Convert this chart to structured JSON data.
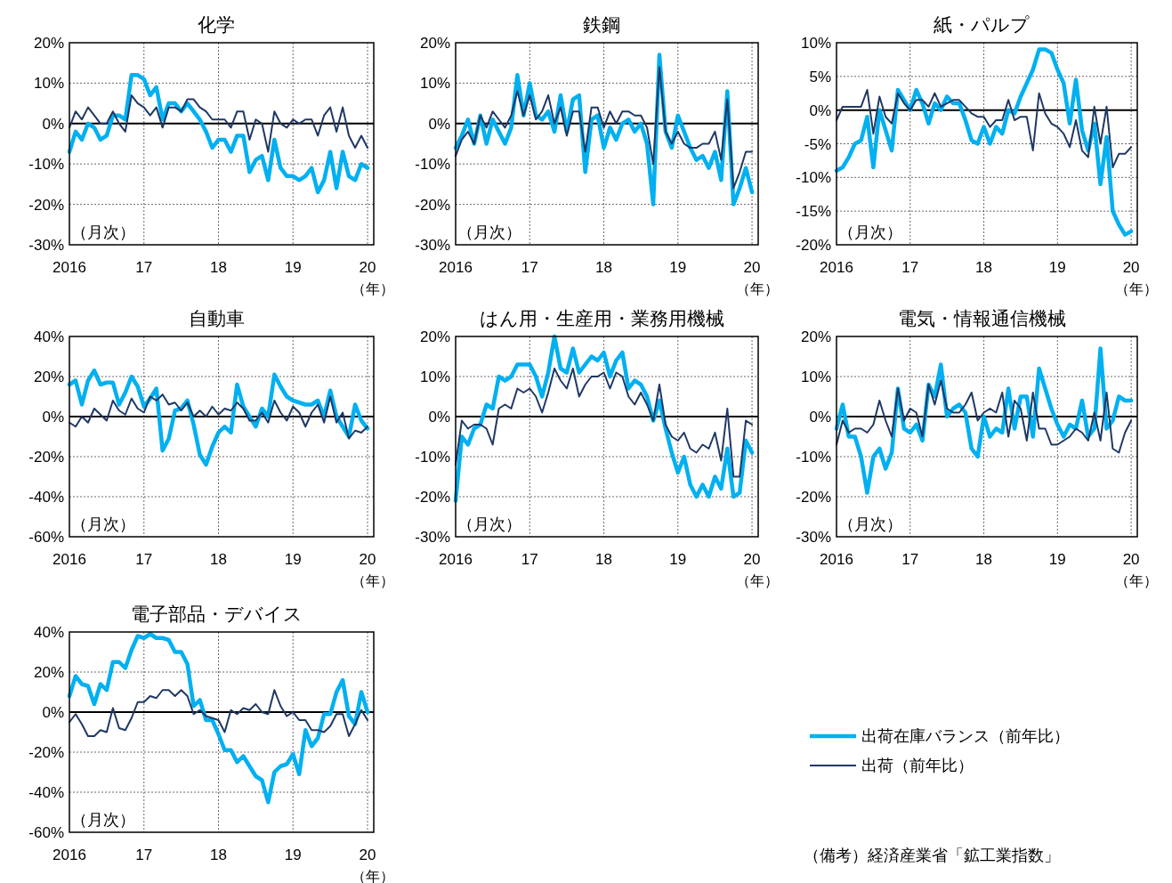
{
  "chart_data": [
    {
      "type": "line",
      "title": "化学",
      "xlabel": "（年）",
      "annotations": [
        "（月次）"
      ],
      "grid": true,
      "x": [
        "2016-01",
        "2016-02",
        "2016-03",
        "2016-04",
        "2016-05",
        "2016-06",
        "2016-07",
        "2016-08",
        "2016-09",
        "2016-10",
        "2016-11",
        "2016-12",
        "2017-01",
        "2017-02",
        "2017-03",
        "2017-04",
        "2017-05",
        "2017-06",
        "2017-07",
        "2017-08",
        "2017-09",
        "2017-10",
        "2017-11",
        "2017-12",
        "2018-01",
        "2018-02",
        "2018-03",
        "2018-04",
        "2018-05",
        "2018-06",
        "2018-07",
        "2018-08",
        "2018-09",
        "2018-10",
        "2018-11",
        "2018-12",
        "2019-01",
        "2019-02",
        "2019-03",
        "2019-04",
        "2019-05",
        "2019-06",
        "2019-07",
        "2019-08",
        "2019-09",
        "2019-10",
        "2019-11",
        "2019-12",
        "2020-01"
      ],
      "xlim": [
        "2016-01",
        "2020-02"
      ],
      "xticks": [
        {
          "value": "2016-01",
          "label": "2016"
        },
        {
          "value": "2017-01",
          "label": "17"
        },
        {
          "value": "2018-01",
          "label": "18"
        },
        {
          "value": "2019-01",
          "label": "19"
        },
        {
          "value": "2020-01",
          "label": "20"
        }
      ],
      "ylim": [
        -30,
        20
      ],
      "yticks": [
        {
          "value": -30,
          "label": "-30%"
        },
        {
          "value": -20,
          "label": "-20%"
        },
        {
          "value": -10,
          "label": "-10%"
        },
        {
          "value": 0,
          "label": "0%"
        },
        {
          "value": 10,
          "label": "10%"
        },
        {
          "value": 20,
          "label": "20%"
        }
      ],
      "ref_lines": [
        {
          "axis": "y",
          "value": 0,
          "color": "#000000"
        }
      ],
      "series": [
        {
          "color": "#00b0f0",
          "values": [
            -7,
            -2,
            -4,
            0,
            -1,
            -4,
            -3,
            2,
            2,
            1,
            12,
            12,
            11,
            7,
            9,
            1,
            5,
            5,
            3,
            5,
            3,
            1,
            -2,
            -6,
            -4,
            -4,
            -7,
            -3,
            -3,
            -12,
            -9,
            -8,
            -14,
            -4,
            -11,
            -13,
            -13,
            -14,
            -13,
            -11,
            -17,
            -14,
            -7,
            -16,
            -7,
            -13,
            -14,
            -10,
            -11
          ]
        },
        {
          "color": "#1f3864",
          "values": [
            -1,
            3,
            1,
            4,
            2,
            0,
            0,
            3,
            0,
            -2,
            7,
            5,
            4,
            2,
            4,
            -1,
            4,
            4,
            3,
            6,
            6,
            4,
            3,
            1,
            1,
            1,
            -1,
            3,
            3,
            -4,
            1,
            0,
            -7,
            3,
            0,
            -1,
            1,
            0,
            1,
            1,
            -3,
            2,
            4,
            -2,
            4,
            -3,
            -6,
            -3,
            -6
          ]
        }
      ]
    },
    {
      "type": "line",
      "title": "鉄鋼",
      "xlabel": "（年）",
      "annotations": [
        "（月次）"
      ],
      "grid": true,
      "x": [
        "2016-01",
        "2016-02",
        "2016-03",
        "2016-04",
        "2016-05",
        "2016-06",
        "2016-07",
        "2016-08",
        "2016-09",
        "2016-10",
        "2016-11",
        "2016-12",
        "2017-01",
        "2017-02",
        "2017-03",
        "2017-04",
        "2017-05",
        "2017-06",
        "2017-07",
        "2017-08",
        "2017-09",
        "2017-10",
        "2017-11",
        "2017-12",
        "2018-01",
        "2018-02",
        "2018-03",
        "2018-04",
        "2018-05",
        "2018-06",
        "2018-07",
        "2018-08",
        "2018-09",
        "2018-10",
        "2018-11",
        "2018-12",
        "2019-01",
        "2019-02",
        "2019-03",
        "2019-04",
        "2019-05",
        "2019-06",
        "2019-07",
        "2019-08",
        "2019-09",
        "2019-10",
        "2019-11",
        "2019-12",
        "2020-01"
      ],
      "xlim": [
        "2016-01",
        "2020-02"
      ],
      "xticks": [
        {
          "value": "2016-01",
          "label": "2016"
        },
        {
          "value": "2017-01",
          "label": "17"
        },
        {
          "value": "2018-01",
          "label": "18"
        },
        {
          "value": "2019-01",
          "label": "19"
        },
        {
          "value": "2020-01",
          "label": "20"
        }
      ],
      "ylim": [
        -30,
        20
      ],
      "yticks": [
        {
          "value": -30,
          "label": "-30%"
        },
        {
          "value": -20,
          "label": "-20%"
        },
        {
          "value": -10,
          "label": "-10%"
        },
        {
          "value": 0,
          "label": "0%"
        },
        {
          "value": 10,
          "label": "10%"
        },
        {
          "value": 20,
          "label": "20%"
        }
      ],
      "ref_lines": [
        {
          "axis": "y",
          "value": 0,
          "color": "#000000"
        }
      ],
      "series": [
        {
          "color": "#00b0f0",
          "values": [
            -6,
            -3,
            1,
            -5,
            2,
            -5,
            1,
            -2,
            -5,
            -1,
            12,
            2,
            10,
            2,
            1,
            3,
            -2,
            7,
            -2,
            6,
            7,
            -12,
            1,
            2,
            -6,
            -1,
            -4,
            0,
            1,
            -2,
            0,
            -5,
            -20,
            17,
            -2,
            -6,
            2,
            -2,
            -6,
            -9,
            -8,
            -11,
            -7,
            -14,
            8,
            -20,
            -16,
            -11,
            -17
          ]
        },
        {
          "color": "#1f3864",
          "values": [
            -8,
            -4,
            -2,
            -5,
            2,
            -1,
            3,
            1,
            -1,
            2,
            8,
            2,
            7,
            1,
            3,
            7,
            0,
            4,
            -3,
            3,
            3,
            -7,
            4,
            4,
            -1,
            3,
            0,
            3,
            3,
            2,
            2,
            -1,
            -10,
            14,
            -2,
            -5,
            -2,
            -5,
            -6,
            -6,
            -5,
            -5,
            -2,
            -9,
            6,
            -16,
            -12,
            -7,
            -7
          ]
        }
      ]
    },
    {
      "type": "line",
      "title": "紙・パルプ",
      "xlabel": "（年）",
      "annotations": [
        "（月次）"
      ],
      "grid": true,
      "x": [
        "2016-01",
        "2016-02",
        "2016-03",
        "2016-04",
        "2016-05",
        "2016-06",
        "2016-07",
        "2016-08",
        "2016-09",
        "2016-10",
        "2016-11",
        "2016-12",
        "2017-01",
        "2017-02",
        "2017-03",
        "2017-04",
        "2017-05",
        "2017-06",
        "2017-07",
        "2017-08",
        "2017-09",
        "2017-10",
        "2017-11",
        "2017-12",
        "2018-01",
        "2018-02",
        "2018-03",
        "2018-04",
        "2018-05",
        "2018-06",
        "2018-07",
        "2018-08",
        "2018-09",
        "2018-10",
        "2018-11",
        "2018-12",
        "2019-01",
        "2019-02",
        "2019-03",
        "2019-04",
        "2019-05",
        "2019-06",
        "2019-07",
        "2019-08",
        "2019-09",
        "2019-10",
        "2019-11",
        "2019-12",
        "2020-01"
      ],
      "xlim": [
        "2016-01",
        "2020-02"
      ],
      "xticks": [
        {
          "value": "2016-01",
          "label": "2016"
        },
        {
          "value": "2017-01",
          "label": "17"
        },
        {
          "value": "2018-01",
          "label": "18"
        },
        {
          "value": "2019-01",
          "label": "19"
        },
        {
          "value": "2020-01",
          "label": "20"
        }
      ],
      "ylim": [
        -20,
        10
      ],
      "yticks": [
        {
          "value": -20,
          "label": "-20%"
        },
        {
          "value": -15,
          "label": "-15%"
        },
        {
          "value": -10,
          "label": "-10%"
        },
        {
          "value": -5,
          "label": "-5%"
        },
        {
          "value": 0,
          "label": "0%"
        },
        {
          "value": 5,
          "label": "5%"
        },
        {
          "value": 10,
          "label": "10%"
        }
      ],
      "ref_lines": [
        {
          "axis": "y",
          "value": 0,
          "color": "#000000"
        }
      ],
      "series": [
        {
          "color": "#00b0f0",
          "values": [
            -9,
            -8.5,
            -7,
            -5,
            -4.5,
            -1,
            -8.5,
            0,
            -3,
            -6,
            3,
            1.5,
            0,
            3,
            1,
            -2,
            1,
            0,
            2,
            1,
            1,
            -1.5,
            -4.5,
            -5,
            -2.5,
            -5,
            -2.5,
            -3.5,
            0,
            -0.5,
            2,
            4,
            6,
            9,
            9,
            8.5,
            6,
            4,
            -2,
            4.5,
            -3,
            -6,
            -2,
            -11,
            -4,
            -15,
            -17,
            -18.5,
            -18
          ]
        },
        {
          "color": "#1f3864",
          "values": [
            -1.5,
            0.5,
            0.5,
            0.5,
            0.5,
            3,
            -3.5,
            2,
            -1,
            -2,
            2.5,
            1,
            0,
            1.5,
            1.5,
            0.5,
            2.5,
            0.5,
            1,
            1.5,
            1.5,
            0.5,
            -0.5,
            -1,
            -1,
            -2.5,
            -1.5,
            -1.5,
            1.5,
            -1.5,
            -1,
            -1,
            -6,
            2.5,
            -0.5,
            -2,
            -2.5,
            -3.5,
            -5.5,
            -1.5,
            -6,
            -7,
            0.5,
            -5,
            0.5,
            -8.5,
            -6.5,
            -6.5,
            -5.5
          ]
        }
      ]
    },
    {
      "type": "line",
      "title": "自動車",
      "xlabel": "（年）",
      "annotations": [
        "（月次）"
      ],
      "grid": true,
      "x": [
        "2016-01",
        "2016-02",
        "2016-03",
        "2016-04",
        "2016-05",
        "2016-06",
        "2016-07",
        "2016-08",
        "2016-09",
        "2016-10",
        "2016-11",
        "2016-12",
        "2017-01",
        "2017-02",
        "2017-03",
        "2017-04",
        "2017-05",
        "2017-06",
        "2017-07",
        "2017-08",
        "2017-09",
        "2017-10",
        "2017-11",
        "2017-12",
        "2018-01",
        "2018-02",
        "2018-03",
        "2018-04",
        "2018-05",
        "2018-06",
        "2018-07",
        "2018-08",
        "2018-09",
        "2018-10",
        "2018-11",
        "2018-12",
        "2019-01",
        "2019-02",
        "2019-03",
        "2019-04",
        "2019-05",
        "2019-06",
        "2019-07",
        "2019-08",
        "2019-09",
        "2019-10",
        "2019-11",
        "2019-12",
        "2020-01"
      ],
      "xlim": [
        "2016-01",
        "2020-02"
      ],
      "xticks": [
        {
          "value": "2016-01",
          "label": "2016"
        },
        {
          "value": "2017-01",
          "label": "17"
        },
        {
          "value": "2018-01",
          "label": "18"
        },
        {
          "value": "2019-01",
          "label": "19"
        },
        {
          "value": "2020-01",
          "label": "20"
        }
      ],
      "ylim": [
        -60,
        40
      ],
      "yticks": [
        {
          "value": -60,
          "label": "-60%"
        },
        {
          "value": -40,
          "label": "-40%"
        },
        {
          "value": -20,
          "label": "-20%"
        },
        {
          "value": 0,
          "label": "0%"
        },
        {
          "value": 20,
          "label": "20%"
        },
        {
          "value": 40,
          "label": "40%"
        }
      ],
      "ref_lines": [
        {
          "axis": "y",
          "value": 0,
          "color": "#000000"
        }
      ],
      "series": [
        {
          "color": "#00b0f0",
          "values": [
            16,
            18,
            6,
            18,
            23,
            16,
            17,
            17,
            6,
            12,
            20,
            15,
            5,
            9,
            14,
            -17,
            -11,
            3,
            4,
            8,
            -4,
            -19,
            -24,
            -15,
            -8,
            -5,
            -8,
            16,
            5,
            0,
            -5,
            4,
            0,
            21,
            15,
            10,
            8,
            7,
            6,
            6,
            8,
            0,
            13,
            0,
            -5,
            -10,
            6,
            -2,
            -6
          ]
        },
        {
          "color": "#1f3864",
          "values": [
            -3,
            -5,
            0,
            -3,
            4,
            1,
            -2,
            8,
            3,
            1,
            9,
            4,
            2,
            10,
            8,
            11,
            6,
            7,
            3,
            7,
            0,
            3,
            0,
            5,
            1,
            4,
            3,
            7,
            4,
            -2,
            -2,
            2,
            -3,
            8,
            2,
            -2,
            5,
            2,
            -5,
            2,
            6,
            -3,
            10,
            -3,
            2,
            -11,
            -7,
            -8,
            -5
          ]
        }
      ]
    },
    {
      "type": "line",
      "title": "はん用・生産用・業務用機械",
      "xlabel": "（年）",
      "annotations": [
        "（月次）"
      ],
      "grid": true,
      "x": [
        "2016-01",
        "2016-02",
        "2016-03",
        "2016-04",
        "2016-05",
        "2016-06",
        "2016-07",
        "2016-08",
        "2016-09",
        "2016-10",
        "2016-11",
        "2016-12",
        "2017-01",
        "2017-02",
        "2017-03",
        "2017-04",
        "2017-05",
        "2017-06",
        "2017-07",
        "2017-08",
        "2017-09",
        "2017-10",
        "2017-11",
        "2017-12",
        "2018-01",
        "2018-02",
        "2018-03",
        "2018-04",
        "2018-05",
        "2018-06",
        "2018-07",
        "2018-08",
        "2018-09",
        "2018-10",
        "2018-11",
        "2018-12",
        "2019-01",
        "2019-02",
        "2019-03",
        "2019-04",
        "2019-05",
        "2019-06",
        "2019-07",
        "2019-08",
        "2019-09",
        "2019-10",
        "2019-11",
        "2019-12",
        "2020-01"
      ],
      "xlim": [
        "2016-01",
        "2020-02"
      ],
      "xticks": [
        {
          "value": "2016-01",
          "label": "2016"
        },
        {
          "value": "2017-01",
          "label": "17"
        },
        {
          "value": "2018-01",
          "label": "18"
        },
        {
          "value": "2019-01",
          "label": "19"
        },
        {
          "value": "2020-01",
          "label": "20"
        }
      ],
      "ylim": [
        -30,
        20
      ],
      "yticks": [
        {
          "value": -30,
          "label": "-30%"
        },
        {
          "value": -20,
          "label": "-20%"
        },
        {
          "value": -10,
          "label": "-10%"
        },
        {
          "value": 0,
          "label": "0%"
        },
        {
          "value": 10,
          "label": "10%"
        },
        {
          "value": 20,
          "label": "20%"
        }
      ],
      "ref_lines": [
        {
          "axis": "y",
          "value": 0,
          "color": "#000000"
        }
      ],
      "series": [
        {
          "color": "#00b0f0",
          "values": [
            -21,
            -5,
            -7,
            -3,
            -2,
            3,
            2,
            10,
            9,
            10,
            13,
            13,
            13,
            10,
            5,
            11,
            20,
            12,
            11,
            17,
            11,
            13,
            15,
            14,
            16,
            10,
            14,
            16,
            7,
            9,
            8,
            5,
            -1,
            4,
            -3,
            -9,
            -14,
            -10,
            -17,
            -20,
            -17,
            -20,
            -15,
            -18,
            -8,
            -20,
            -19,
            -6,
            -9
          ]
        },
        {
          "color": "#1f3864",
          "values": [
            -12,
            -1,
            -3,
            -2,
            -2,
            -3,
            -7,
            2,
            3,
            2,
            7,
            6,
            7,
            5,
            1,
            6,
            12,
            9,
            7,
            12,
            5,
            8,
            10,
            10,
            11,
            7,
            11,
            10,
            5,
            3,
            6,
            3,
            -1,
            8,
            -2,
            -5,
            -6,
            -4,
            -8,
            -9,
            -7,
            -8,
            -4,
            -11,
            2,
            -15,
            -15,
            -1,
            -2
          ]
        }
      ]
    },
    {
      "type": "line",
      "title": "電気・情報通信機械",
      "xlabel": "（年）",
      "annotations": [
        "（月次）"
      ],
      "grid": true,
      "x": [
        "2016-01",
        "2016-02",
        "2016-03",
        "2016-04",
        "2016-05",
        "2016-06",
        "2016-07",
        "2016-08",
        "2016-09",
        "2016-10",
        "2016-11",
        "2016-12",
        "2017-01",
        "2017-02",
        "2017-03",
        "2017-04",
        "2017-05",
        "2017-06",
        "2017-07",
        "2017-08",
        "2017-09",
        "2017-10",
        "2017-11",
        "2017-12",
        "2018-01",
        "2018-02",
        "2018-03",
        "2018-04",
        "2018-05",
        "2018-06",
        "2018-07",
        "2018-08",
        "2018-09",
        "2018-10",
        "2018-11",
        "2018-12",
        "2019-01",
        "2019-02",
        "2019-03",
        "2019-04",
        "2019-05",
        "2019-06",
        "2019-07",
        "2019-08",
        "2019-09",
        "2019-10",
        "2019-11",
        "2019-12",
        "2020-01"
      ],
      "xlim": [
        "2016-01",
        "2020-02"
      ],
      "xticks": [
        {
          "value": "2016-01",
          "label": "2016"
        },
        {
          "value": "2017-01",
          "label": "17"
        },
        {
          "value": "2018-01",
          "label": "18"
        },
        {
          "value": "2019-01",
          "label": "19"
        },
        {
          "value": "2020-01",
          "label": "20"
        }
      ],
      "ylim": [
        -30,
        20
      ],
      "yticks": [
        {
          "value": -30,
          "label": "-30%"
        },
        {
          "value": -20,
          "label": "-20%"
        },
        {
          "value": -10,
          "label": "-10%"
        },
        {
          "value": 0,
          "label": "0%"
        },
        {
          "value": 10,
          "label": "10%"
        },
        {
          "value": 20,
          "label": "20%"
        }
      ],
      "ref_lines": [
        {
          "axis": "y",
          "value": 0,
          "color": "#000000"
        }
      ],
      "series": [
        {
          "color": "#00b0f0",
          "values": [
            -3,
            3,
            -5,
            -5,
            -10,
            -19,
            -10,
            -8,
            -13,
            -9,
            7,
            -3,
            -4,
            -2,
            -6,
            8,
            5,
            13,
            0,
            2,
            3,
            1,
            -8,
            -10,
            0,
            -5,
            -3,
            -4,
            7,
            -3,
            5,
            5,
            -5,
            12,
            7,
            2,
            -2,
            -5,
            -2,
            -3,
            4,
            -5,
            -3,
            17,
            -3,
            -1,
            5,
            4,
            4
          ]
        },
        {
          "color": "#1f3864",
          "values": [
            -7,
            -1,
            -4,
            -3,
            -3,
            -4,
            -2,
            4,
            -1,
            -5,
            7,
            -1,
            2,
            1,
            -5,
            8,
            3,
            9,
            2,
            1,
            1,
            3,
            6,
            -1,
            1,
            2,
            1,
            6,
            -5,
            4,
            2,
            -6,
            6,
            -3,
            -3,
            -7,
            -7,
            -6,
            -5,
            -3,
            -4,
            -6,
            1,
            -6,
            6,
            -8,
            -9,
            -4,
            -1
          ]
        }
      ]
    },
    {
      "type": "line",
      "title": "電子部品・デバイス",
      "xlabel": "（年）",
      "annotations": [
        "（月次）",
        "（備考）経済産業省「鉱工業指数」"
      ],
      "grid": true,
      "legend": "right",
      "x": [
        "2016-01",
        "2016-02",
        "2016-03",
        "2016-04",
        "2016-05",
        "2016-06",
        "2016-07",
        "2016-08",
        "2016-09",
        "2016-10",
        "2016-11",
        "2016-12",
        "2017-01",
        "2017-02",
        "2017-03",
        "2017-04",
        "2017-05",
        "2017-06",
        "2017-07",
        "2017-08",
        "2017-09",
        "2017-10",
        "2017-11",
        "2017-12",
        "2018-01",
        "2018-02",
        "2018-03",
        "2018-04",
        "2018-05",
        "2018-06",
        "2018-07",
        "2018-08",
        "2018-09",
        "2018-10",
        "2018-11",
        "2018-12",
        "2019-01",
        "2019-02",
        "2019-03",
        "2019-04",
        "2019-05",
        "2019-06",
        "2019-07",
        "2019-08",
        "2019-09",
        "2019-10",
        "2019-11",
        "2019-12",
        "2020-01"
      ],
      "xlim": [
        "2016-01",
        "2020-02"
      ],
      "xticks": [
        {
          "value": "2016-01",
          "label": "2016"
        },
        {
          "value": "2017-01",
          "label": "17"
        },
        {
          "value": "2018-01",
          "label": "18"
        },
        {
          "value": "2019-01",
          "label": "19"
        },
        {
          "value": "2020-01",
          "label": "20"
        }
      ],
      "ylim": [
        -60,
        40
      ],
      "yticks": [
        {
          "value": -60,
          "label": "-60%"
        },
        {
          "value": -40,
          "label": "-40%"
        },
        {
          "value": -20,
          "label": "-20%"
        },
        {
          "value": 0,
          "label": "0%"
        },
        {
          "value": 20,
          "label": "20%"
        },
        {
          "value": 40,
          "label": "40%"
        }
      ],
      "ref_lines": [
        {
          "axis": "y",
          "value": 0,
          "color": "#000000"
        }
      ],
      "series": [
        {
          "name": "出荷在庫バランス（前年比）",
          "color": "#00b0f0",
          "values": [
            8,
            18,
            14,
            13,
            4,
            14,
            11,
            25,
            25,
            22,
            31,
            38,
            37,
            39,
            37,
            37,
            36,
            30,
            30,
            24,
            3,
            6,
            -4,
            -4,
            -11,
            -19,
            -19,
            -25,
            -22,
            -27,
            -32,
            -34,
            -45,
            -30,
            -27,
            -26,
            -21,
            -31,
            -9,
            -17,
            -13,
            -1,
            -1,
            10,
            16,
            -2,
            -6,
            10,
            0
          ]
        },
        {
          "name": "出荷（前年比）",
          "color": "#1f3864",
          "values": [
            -5,
            -1,
            -6,
            -12,
            -12,
            -9,
            -10,
            2,
            -8,
            -9,
            -3,
            5,
            5,
            8,
            7,
            11,
            11,
            8,
            11,
            8,
            -1,
            1,
            -2,
            -3,
            -4,
            -10,
            1,
            -1,
            2,
            1,
            4,
            0,
            -1,
            11,
            3,
            -2,
            0,
            -4,
            -4,
            -9,
            -9,
            -10,
            -7,
            -1,
            -1,
            -12,
            -6,
            1,
            -4
          ]
        }
      ]
    }
  ]
}
